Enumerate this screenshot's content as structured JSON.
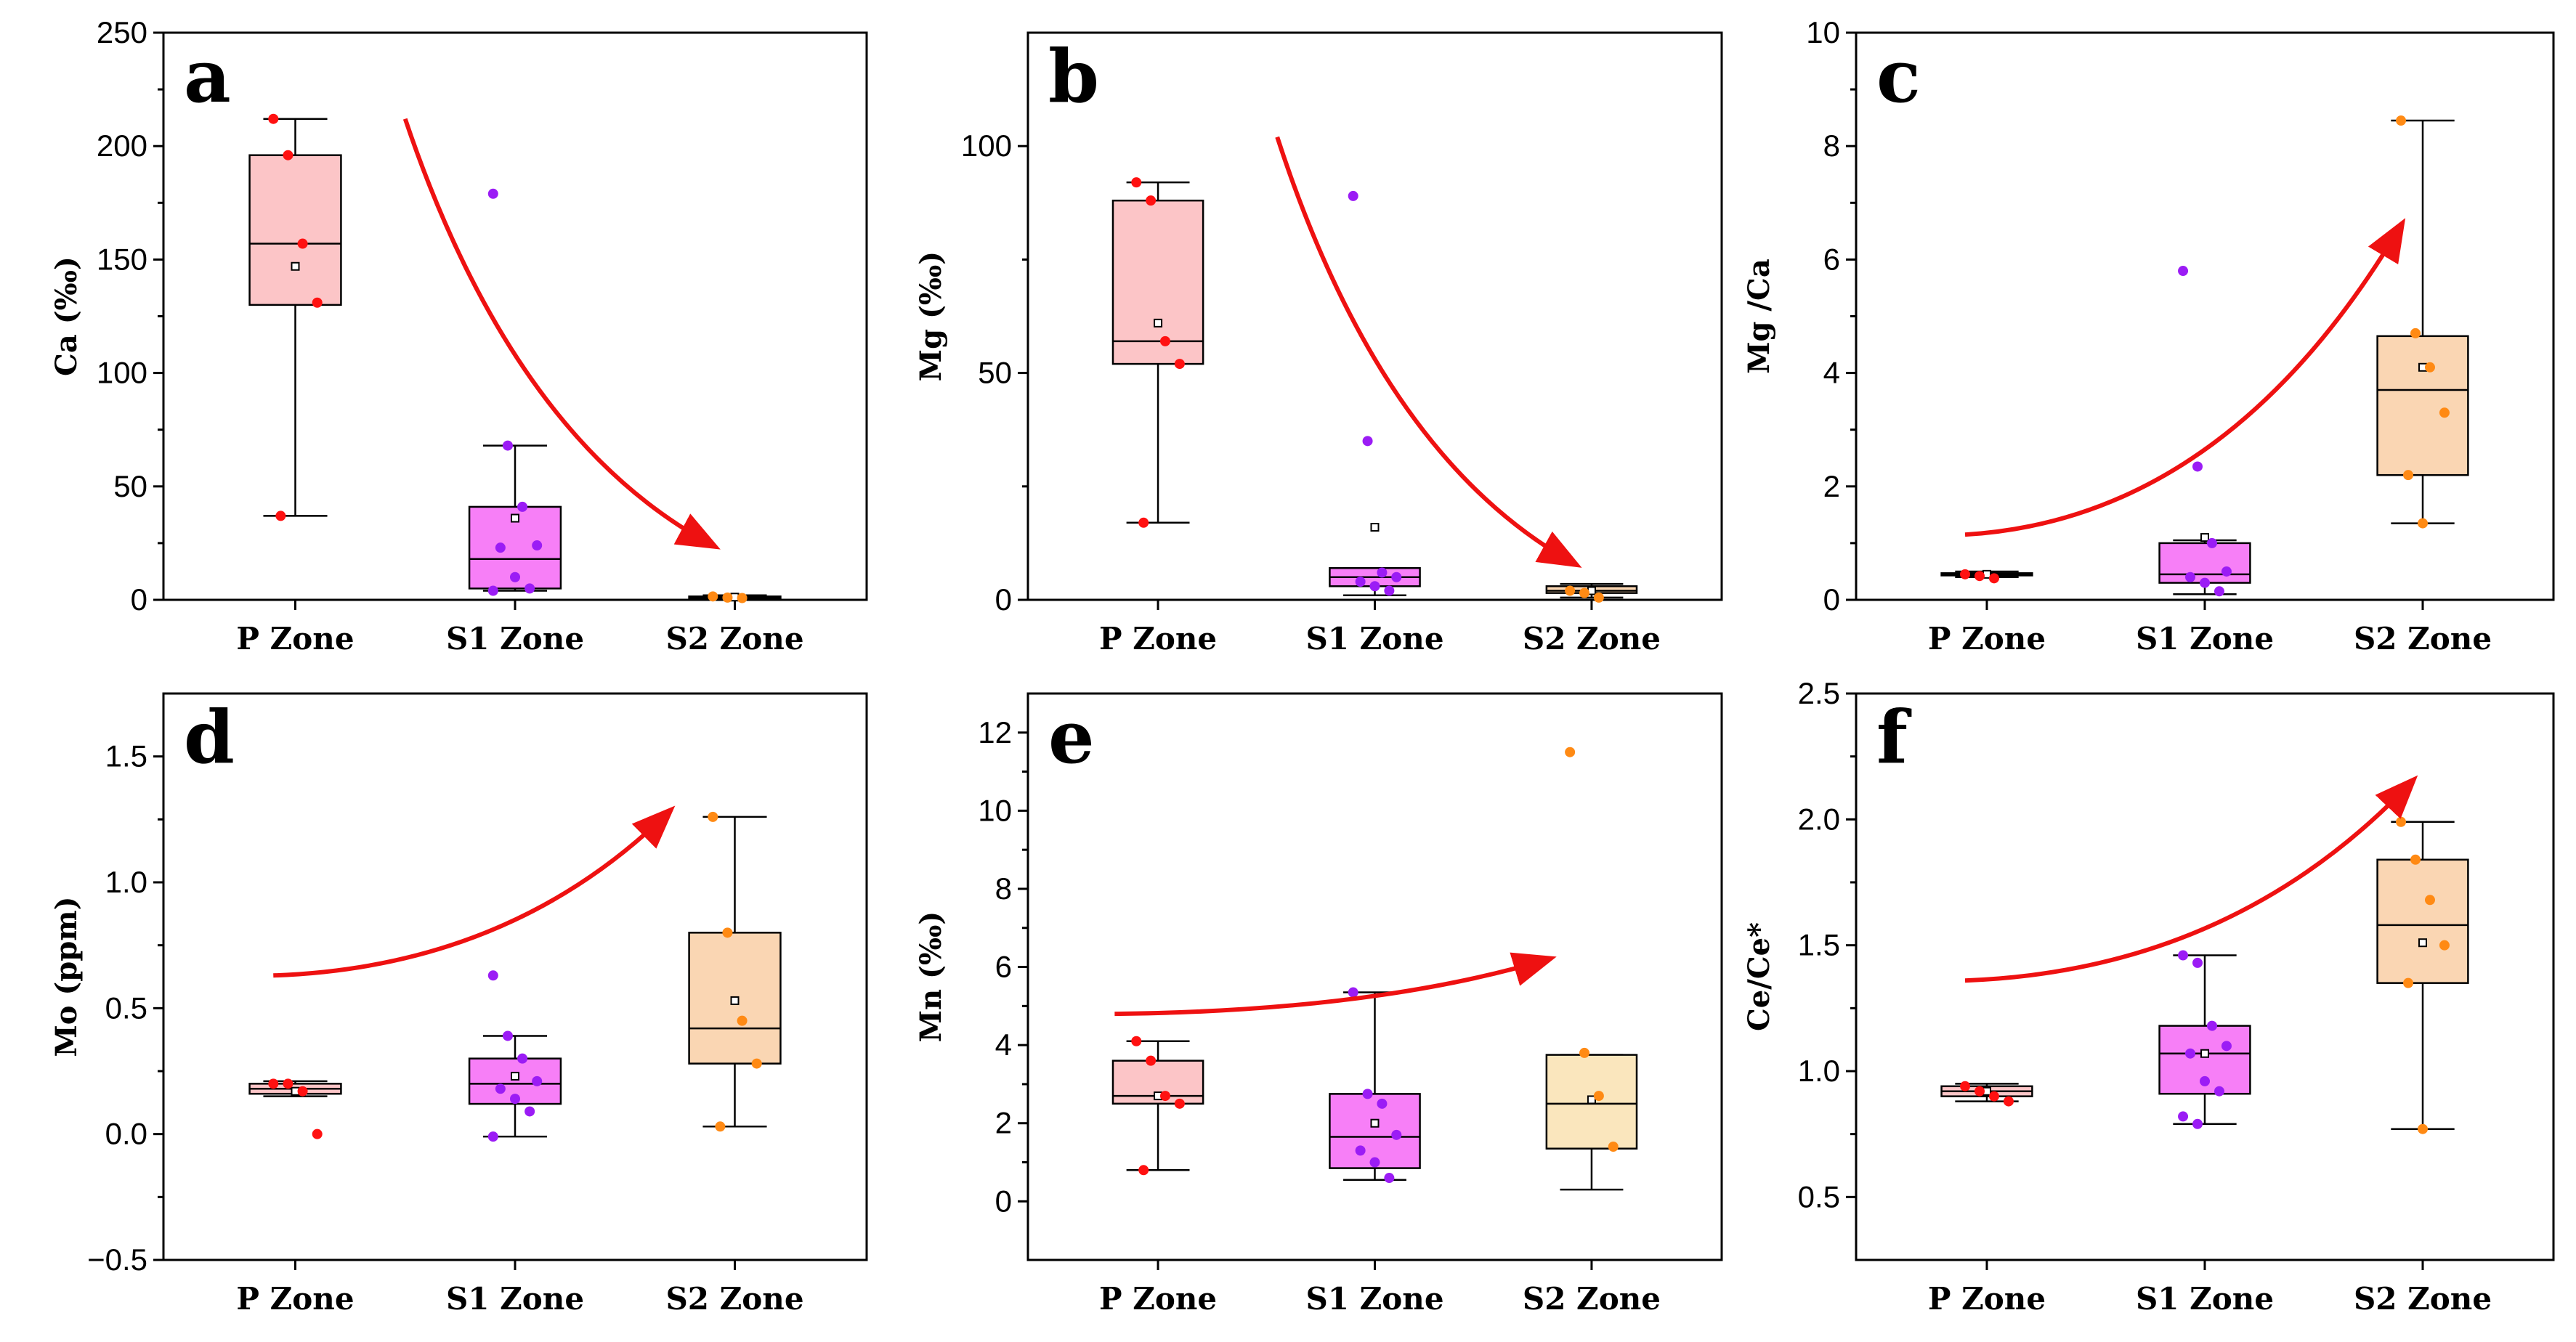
{
  "figure": {
    "categories": [
      "P Zone",
      "S1 Zone",
      "S2 Zone"
    ],
    "box_fill_colors": [
      "#fcc5c7",
      "#f77ff7",
      "#fad6b3"
    ],
    "point_colors": [
      "#ff1111",
      "#9b1cf5",
      "#ff8a14"
    ],
    "arrow_color": "#ee1111"
  },
  "chart_data": [
    {
      "id": "a",
      "type": "box",
      "letter": "a",
      "ylabel": "Ca (‰)",
      "ylim": [
        0,
        250
      ],
      "yticks": [
        0,
        50,
        100,
        150,
        200,
        250
      ],
      "categories": [
        "P Zone",
        "S1 Zone",
        "S2 Zone"
      ],
      "box_fills": [
        "#fcc5c7",
        "#f77ff7",
        "#fad6b3"
      ],
      "series": [
        {
          "name": "P Zone",
          "min": 37,
          "q1": 130,
          "median": 157,
          "q3": 196,
          "max": 212,
          "mean": 147,
          "points": [
            212,
            196,
            157,
            131,
            37
          ]
        },
        {
          "name": "S1 Zone",
          "min": 4,
          "q1": 5,
          "median": 18,
          "q3": 41,
          "max": 68,
          "mean": 36,
          "points": [
            179,
            68,
            41,
            24,
            23,
            10,
            5,
            4
          ]
        },
        {
          "name": "S2 Zone",
          "min": 0.5,
          "q1": 0.8,
          "median": 1.0,
          "q3": 1.5,
          "max": 2,
          "mean": 1.2,
          "points": [
            1.5,
            1.0,
            0.8
          ]
        }
      ],
      "arrow": {
        "direction": "decreasing",
        "from": [
          0.5,
          212
        ],
        "to": [
          1.9,
          24
        ]
      }
    },
    {
      "id": "b",
      "type": "box",
      "letter": "b",
      "ylabel": "Mg (‰)",
      "ylim": [
        0,
        125
      ],
      "yticks": [
        0,
        50,
        100
      ],
      "categories": [
        "P Zone",
        "S1 Zone",
        "S2 Zone"
      ],
      "box_fills": [
        "#fcc5c7",
        "#f77ff7",
        "#fad6b3"
      ],
      "series": [
        {
          "name": "P Zone",
          "min": 17,
          "q1": 52,
          "median": 57,
          "q3": 88,
          "max": 92,
          "mean": 61,
          "points": [
            92,
            88,
            57,
            52,
            17
          ]
        },
        {
          "name": "S1 Zone",
          "min": 1,
          "q1": 3,
          "median": 5,
          "q3": 7,
          "max": 7,
          "mean": 16,
          "points": [
            89,
            35,
            6,
            5,
            4,
            3,
            2
          ]
        },
        {
          "name": "S2 Zone",
          "min": 0.5,
          "q1": 1.5,
          "median": 2,
          "q3": 3,
          "max": 3.5,
          "mean": 2,
          "points": [
            2,
            1.5,
            0.5
          ]
        }
      ],
      "arrow": {
        "direction": "decreasing",
        "from": [
          0.55,
          102
        ],
        "to": [
          1.92,
          8
        ]
      }
    },
    {
      "id": "c",
      "type": "box",
      "letter": "c",
      "ylabel": "Mg /Ca",
      "ylim": [
        0,
        10
      ],
      "yticks": [
        0,
        2,
        4,
        6,
        8,
        10
      ],
      "categories": [
        "P Zone",
        "S1 Zone",
        "S2 Zone"
      ],
      "box_fills": [
        "#fcc5c7",
        "#f77ff7",
        "#fad6b3"
      ],
      "series": [
        {
          "name": "P Zone",
          "min": 0.4,
          "q1": 0.43,
          "median": 0.45,
          "q3": 0.47,
          "max": 0.5,
          "mean": 0.45,
          "points": [
            0.45,
            0.42,
            0.38
          ]
        },
        {
          "name": "S1 Zone",
          "min": 0.1,
          "q1": 0.3,
          "median": 0.45,
          "q3": 1.0,
          "max": 1.05,
          "mean": 1.1,
          "points": [
            5.8,
            2.35,
            1.0,
            0.5,
            0.4,
            0.3,
            0.15
          ]
        },
        {
          "name": "S2 Zone",
          "min": 1.35,
          "q1": 2.2,
          "median": 3.7,
          "q3": 4.65,
          "max": 8.45,
          "mean": 4.1,
          "points": [
            8.45,
            4.7,
            4.1,
            3.3,
            2.2,
            1.35
          ]
        }
      ],
      "arrow": {
        "direction": "increasing",
        "from": [
          -0.1,
          1.15
        ],
        "to": [
          1.9,
          6.6
        ]
      }
    },
    {
      "id": "d",
      "type": "box",
      "letter": "d",
      "ylabel": "Mo (ppm)",
      "ylim": [
        -0.5,
        1.75
      ],
      "yticks": [
        -0.5,
        0.0,
        0.5,
        1.0,
        1.5
      ],
      "categories": [
        "P Zone",
        "S1 Zone",
        "S2 Zone"
      ],
      "box_fills": [
        "#fcc5c7",
        "#f77ff7",
        "#fad6b3"
      ],
      "series": [
        {
          "name": "P Zone",
          "min": 0.15,
          "q1": 0.16,
          "median": 0.18,
          "q3": 0.2,
          "max": 0.21,
          "mean": 0.17,
          "points": [
            0.2,
            0.2,
            0.17,
            0.0
          ]
        },
        {
          "name": "S1 Zone",
          "min": -0.01,
          "q1": 0.12,
          "median": 0.2,
          "q3": 0.3,
          "max": 0.39,
          "mean": 0.23,
          "points": [
            0.63,
            0.39,
            0.3,
            0.21,
            0.18,
            0.14,
            0.09,
            -0.01
          ]
        },
        {
          "name": "S2 Zone",
          "min": 0.03,
          "q1": 0.28,
          "median": 0.42,
          "q3": 0.8,
          "max": 1.26,
          "mean": 0.53,
          "points": [
            1.26,
            0.8,
            0.45,
            0.28,
            0.03
          ]
        }
      ],
      "arrow": {
        "direction": "increasing",
        "from": [
          -0.1,
          0.63
        ],
        "to": [
          1.7,
          1.28
        ]
      }
    },
    {
      "id": "e",
      "type": "box",
      "letter": "e",
      "ylabel": "Mn (‰)",
      "ylim": [
        -1.5,
        13
      ],
      "yticks": [
        0,
        2,
        4,
        6,
        8,
        10,
        12
      ],
      "categories": [
        "P Zone",
        "S1 Zone",
        "S2 Zone"
      ],
      "box_fills": [
        "#fcc5c7",
        "#f77ff7",
        "#fae6bd"
      ],
      "series": [
        {
          "name": "P Zone",
          "min": 0.8,
          "q1": 2.5,
          "median": 2.7,
          "q3": 3.6,
          "max": 4.1,
          "mean": 2.7,
          "points": [
            4.1,
            3.6,
            2.7,
            2.5,
            0.8
          ]
        },
        {
          "name": "S1 Zone",
          "min": 0.55,
          "q1": 0.85,
          "median": 1.65,
          "q3": 2.75,
          "max": 5.35,
          "mean": 2.0,
          "points": [
            5.35,
            2.75,
            2.5,
            1.7,
            1.3,
            1.0,
            0.6
          ]
        },
        {
          "name": "S2 Zone",
          "min": 0.3,
          "q1": 1.35,
          "median": 2.5,
          "q3": 3.75,
          "max": 3.75,
          "mean": 2.6,
          "points": [
            11.5,
            3.8,
            2.7,
            1.4
          ]
        }
      ],
      "arrow": {
        "direction": "increasing",
        "from": [
          -0.2,
          4.8
        ],
        "to": [
          1.8,
          6.2
        ]
      }
    },
    {
      "id": "f",
      "type": "box",
      "letter": "f",
      "ylabel": "Ce/Ce*",
      "ylim": [
        0.25,
        2.5
      ],
      "yticks": [
        0.5,
        1.0,
        1.5,
        2.0,
        2.5
      ],
      "categories": [
        "P Zone",
        "S1 Zone",
        "S2 Zone"
      ],
      "box_fills": [
        "#fcc5c7",
        "#f77ff7",
        "#fad6b3"
      ],
      "series": [
        {
          "name": "P Zone",
          "min": 0.88,
          "q1": 0.9,
          "median": 0.92,
          "q3": 0.94,
          "max": 0.95,
          "mean": 0.92,
          "points": [
            0.94,
            0.92,
            0.9,
            0.88
          ]
        },
        {
          "name": "S1 Zone",
          "min": 0.79,
          "q1": 0.91,
          "median": 1.07,
          "q3": 1.18,
          "max": 1.46,
          "mean": 1.07,
          "points": [
            1.46,
            1.43,
            1.18,
            1.1,
            1.07,
            0.96,
            0.92,
            0.82,
            0.79
          ]
        },
        {
          "name": "S2 Zone",
          "min": 0.77,
          "q1": 1.35,
          "median": 1.58,
          "q3": 1.84,
          "max": 1.99,
          "mean": 1.51,
          "points": [
            1.99,
            1.84,
            1.68,
            1.5,
            1.35,
            0.77
          ]
        }
      ],
      "arrow": {
        "direction": "increasing",
        "from": [
          -0.1,
          1.36
        ],
        "to": [
          1.95,
          2.15
        ]
      }
    }
  ]
}
